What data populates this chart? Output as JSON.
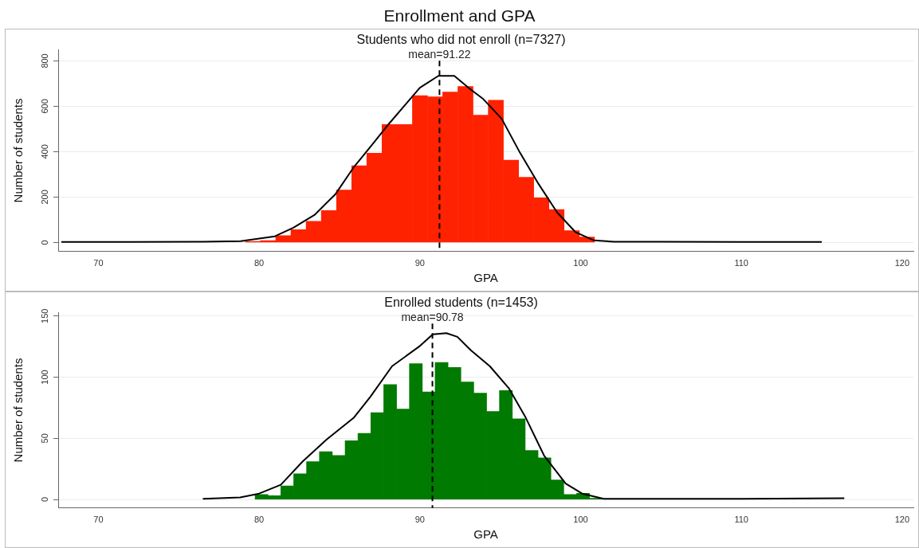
{
  "chart_data": [
    {
      "type": "histogram",
      "title": "Enrollment and GPA",
      "subtitle": "Students who did not enroll (n=7327)",
      "xlabel": "GPA",
      "ylabel": "Number of students",
      "color": "#ff2200",
      "bins": [
        79.15,
        80.09,
        81.03,
        81.98,
        82.92,
        83.87,
        84.81,
        85.76,
        86.7,
        87.64,
        88.59,
        89.53,
        90.48,
        91.42,
        92.36,
        93.31,
        94.25,
        95.2,
        96.14,
        97.08,
        98.03,
        98.97,
        99.92,
        100.86
      ],
      "values": [
        5,
        8,
        30,
        56,
        93,
        141,
        231,
        338,
        393,
        520,
        520,
        647,
        642,
        663,
        687,
        561,
        627,
        363,
        287,
        197,
        145,
        52,
        24
      ],
      "series": [
        {
          "type": "line",
          "color": "#000000",
          "x": [
            67.7,
            72,
            76,
            78,
            78.85,
            80.98,
            82.13,
            83.44,
            84.76,
            85.9,
            87.05,
            88.04,
            89.02,
            90.0,
            91.15,
            92.14,
            93.12,
            93.94,
            95.09,
            96.23,
            97.38,
            98.53,
            99.67,
            100.83,
            102.1,
            105,
            110,
            115
          ],
          "values": [
            2,
            2,
            3,
            5,
            6,
            27,
            65,
            121,
            214,
            333,
            433,
            520,
            601,
            682,
            734,
            734,
            676,
            632,
            545,
            395,
            258,
            133,
            46,
            9,
            3,
            3,
            2,
            2
          ]
        }
      ],
      "ref_lines": [
        {
          "axis": "x",
          "value": 91.22,
          "label": "mean=91.22",
          "line_style": "dashed",
          "color": "#000000"
        }
      ],
      "xlim": [
        67.5,
        120.7
      ],
      "xticks": [
        70,
        80,
        90,
        100,
        110,
        120
      ],
      "ylim": [
        -40,
        850
      ],
      "yticks": [
        0,
        200,
        400,
        600,
        800
      ],
      "grid": "y"
    },
    {
      "type": "histogram",
      "subtitle": "Enrolled students (n=1453)",
      "xlabel": "GPA",
      "ylabel": "Number of students",
      "color": "#007a00",
      "bins": [
        79.75,
        80.55,
        81.35,
        82.15,
        82.95,
        83.75,
        84.55,
        85.35,
        86.15,
        86.95,
        87.75,
        88.55,
        89.35,
        90.15,
        90.95,
        91.75,
        92.55,
        93.35,
        94.15,
        94.95,
        95.75,
        96.55,
        97.35,
        98.15,
        98.95,
        99.75,
        100.55,
        101.35
      ],
      "values": [
        4,
        3,
        11,
        21,
        31,
        39,
        36,
        48,
        54,
        71,
        94,
        74,
        111,
        88,
        112,
        108,
        96,
        87,
        72,
        89,
        66,
        40,
        34,
        16,
        4,
        5,
        1
      ],
      "series": [
        {
          "type": "line",
          "color": "#000000",
          "x": [
            76.5,
            78.82,
            80.0,
            81.35,
            82.7,
            84.2,
            85.9,
            86.92,
            88.27,
            89.95,
            90.8,
            91.65,
            92.33,
            93.17,
            94.35,
            95.53,
            96.54,
            97.72,
            99.07,
            100.09,
            101.44,
            104,
            110,
            116.4
          ],
          "values": [
            0.5,
            1.7,
            4.8,
            12,
            31,
            49,
            67,
            84,
            109,
            125,
            135,
            136,
            133,
            122,
            109,
            91,
            68,
            36,
            13,
            4.8,
            0.5,
            0.5,
            0.5,
            1
          ]
        }
      ],
      "ref_lines": [
        {
          "axis": "x",
          "value": 90.78,
          "label": "mean=90.78",
          "line_style": "dashed",
          "color": "#000000"
        }
      ],
      "xlim": [
        67.5,
        120.7
      ],
      "xticks": [
        70,
        80,
        90,
        100,
        110,
        120
      ],
      "ylim": [
        -7,
        153
      ],
      "yticks": [
        0,
        50,
        100,
        150
      ],
      "grid": "y"
    }
  ]
}
